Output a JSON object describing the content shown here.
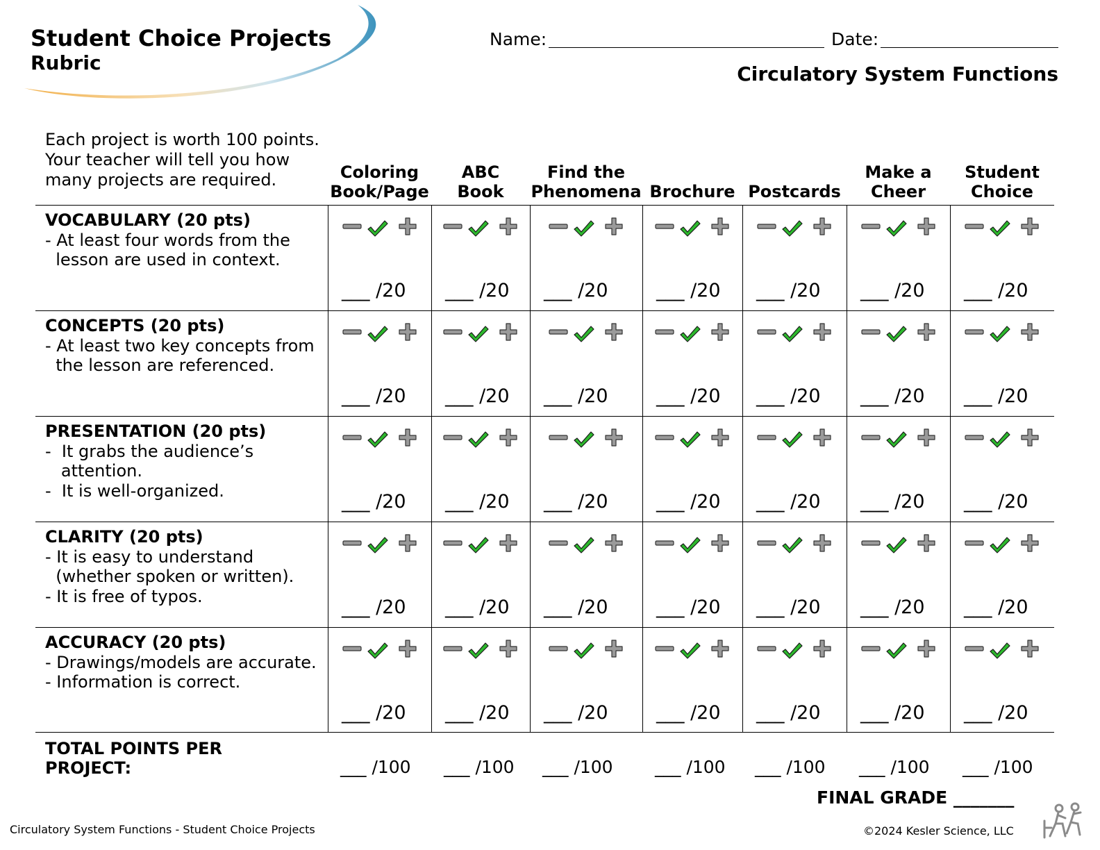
{
  "header": {
    "title": "Student Choice Projects",
    "subtitle": "Rubric",
    "name_label": "Name:",
    "date_label": "Date:",
    "unit_title": "Circulatory System Functions"
  },
  "intro": "Each project is worth 100 points. Your teacher will tell you how many projects are required.",
  "columns": [
    {
      "line1": "Coloring",
      "line2": "Book/Page"
    },
    {
      "line1": "ABC",
      "line2": "Book"
    },
    {
      "line1": "Find the",
      "line2": "Phenomena"
    },
    {
      "line1": "",
      "line2": "Brochure"
    },
    {
      "line1": "",
      "line2": "Postcards"
    },
    {
      "line1": "Make a",
      "line2": "Cheer"
    },
    {
      "line1": "Student",
      "line2": "Choice"
    }
  ],
  "criteria": [
    {
      "title": "VOCABULARY (20 pts)",
      "desc": "- At least four words from the\n  lesson are used in context."
    },
    {
      "title": "CONCEPTS (20 pts)",
      "desc": "- At least two key concepts from\n  the lesson are referenced."
    },
    {
      "title": "PRESENTATION (20 pts)",
      "desc": "-  It grabs the audience’s\n   attention.\n-  It is well-organized."
    },
    {
      "title": "CLARITY (20 pts)",
      "desc": "- It is easy to understand\n  (whether spoken or written).\n- It is free of typos."
    },
    {
      "title": "ACCURACY (20 pts)",
      "desc": "- Drawings/models are accurate.\n- Information is correct."
    }
  ],
  "score_text": "___ /20",
  "icons": {
    "minus": "minus-icon",
    "check": "check-icon",
    "plus": "plus-icon",
    "check_color": "#2db82d",
    "sign_color": "#9a9a9a"
  },
  "total": {
    "label": "TOTAL POINTS PER PROJECT:",
    "score_text": "___ /100"
  },
  "final_grade": "FINAL GRADE _______",
  "footer": {
    "left": "Circulatory System Functions - Student Choice Projects",
    "right": "©2024  Kesler Science, LLC"
  }
}
